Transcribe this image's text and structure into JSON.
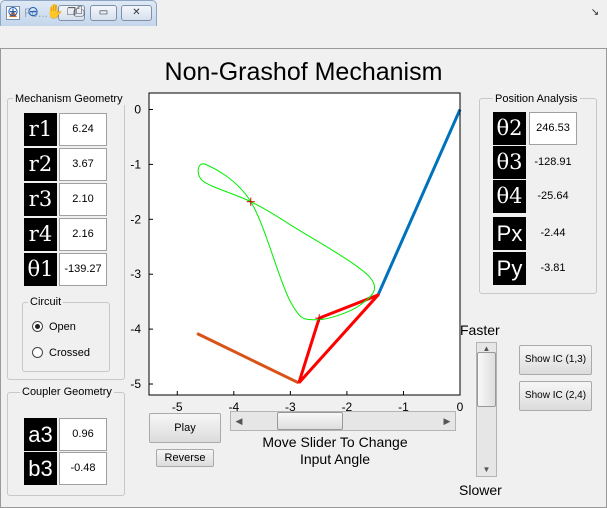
{
  "window": {
    "title": "Fo..."
  },
  "main_title": "Non-Grashof Mechanism",
  "mechanism_geometry": {
    "label": "Mechanism Geometry",
    "rows": [
      {
        "symbol": "r1",
        "value": "6.24"
      },
      {
        "symbol": "r2",
        "value": "3.67"
      },
      {
        "symbol": "r3",
        "value": "2.10"
      },
      {
        "symbol": "r4",
        "value": "2.16"
      },
      {
        "symbol": "θ1",
        "value": "-139.27"
      }
    ]
  },
  "circuit": {
    "label": "Circuit",
    "options": [
      "Open",
      "Crossed"
    ],
    "selected": "Open"
  },
  "coupler_geometry": {
    "label": "Coupler Geometry",
    "rows": [
      {
        "symbol": "a3",
        "value": "0.96"
      },
      {
        "symbol": "b3",
        "value": "-0.48"
      }
    ]
  },
  "position_analysis": {
    "label": "Position Analysis",
    "rows": [
      {
        "symbol": "θ2",
        "value": "246.53"
      },
      {
        "symbol": "θ3",
        "value": "-128.91"
      },
      {
        "symbol": "θ4",
        "value": "-25.64"
      },
      {
        "symbol": "Px",
        "value": "-2.44"
      },
      {
        "symbol": "Py",
        "value": "-3.81"
      }
    ]
  },
  "controls": {
    "play_label": "Play",
    "reverse_label": "Reverse",
    "slider_caption": [
      "Move Slider To Change",
      "Input Angle"
    ],
    "faster_label": "Faster",
    "slower_label": "Slower",
    "show_ic13_label": "Show IC (1,3)",
    "show_ic24_label": "Show IC (2,4)"
  },
  "colors": {
    "ground_link": "#0072bd",
    "input_link": "#d95319",
    "coupler": "#ff0000",
    "coupler_curve": "#00ee00",
    "coupler_point_marker": "#cc0000"
  },
  "chart_data": {
    "type": "line",
    "xlim": [
      -5.5,
      0
    ],
    "ylim": [
      -5.2,
      0.3
    ],
    "xticks": [
      -5,
      -4,
      -3,
      -2,
      -1,
      0
    ],
    "yticks": [
      0,
      -1,
      -2,
      -3,
      -4,
      -5
    ],
    "series": [
      {
        "values": [
          [
            0,
            0
          ],
          [
            -1.45,
            -3.38
          ]
        ],
        "color": "#0072bd"
      },
      {
        "values": [
          [
            -4.65,
            -4.08
          ],
          [
            -2.85,
            -4.98
          ]
        ],
        "color": "#d95319"
      },
      {
        "values": [
          [
            -2.85,
            -4.98
          ],
          [
            -2.49,
            -3.8
          ],
          [
            -1.45,
            -3.38
          ],
          [
            -2.85,
            -4.98
          ]
        ],
        "color": "#ff0000"
      },
      {
        "values": [
          [
            -3.7,
            -1.68
          ],
          [
            -4.5,
            -1.0
          ],
          [
            -4.55,
            -1.3
          ],
          [
            -3.7,
            -1.68
          ],
          [
            -3.0,
            -2.1
          ],
          [
            -1.6,
            -3.05
          ],
          [
            -1.75,
            -3.55
          ],
          [
            -2.55,
            -3.83
          ],
          [
            -3.0,
            -3.5
          ],
          [
            -3.7,
            -1.68
          ]
        ],
        "color": "#00ee00"
      }
    ],
    "markers": [
      {
        "x": -3.7,
        "y": -1.68,
        "symbol": "+"
      },
      {
        "x": -2.49,
        "y": -3.8,
        "symbol": "+"
      }
    ],
    "grid": false
  }
}
